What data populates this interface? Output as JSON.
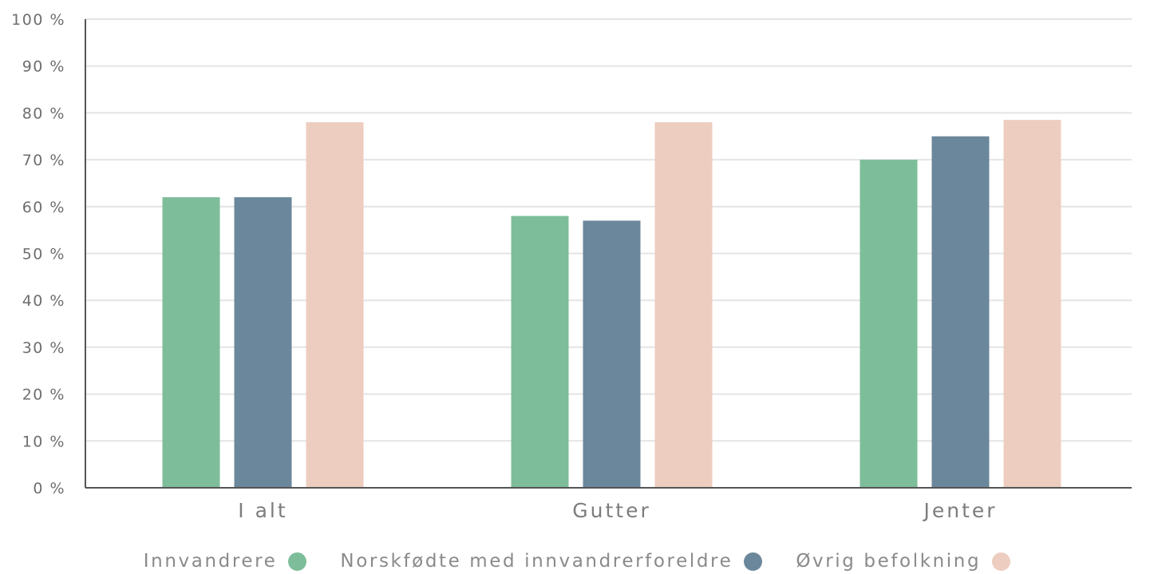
{
  "chart_data": {
    "type": "bar",
    "categories": [
      "I alt",
      "Gutter",
      "Jenter"
    ],
    "series": [
      {
        "name": "Innvandrere",
        "values": [
          62,
          58,
          70
        ],
        "color": "#7dbd9a"
      },
      {
        "name": "Norskfødte med innvandrerforeldre",
        "values": [
          62,
          57,
          75
        ],
        "color": "#6b879b"
      },
      {
        "name": "Øvrig befolkning",
        "values": [
          78,
          78,
          78.5
        ],
        "color": "#edcdbf"
      }
    ],
    "yticks": [
      "0 %",
      "10 %",
      "20 %",
      "30 %",
      "40 %",
      "50 %",
      "60 %",
      "70 %",
      "80 %",
      "90 %",
      "100 %"
    ],
    "ylim": [
      0,
      100
    ],
    "grid": true,
    "legend_position": "bottom-center"
  }
}
